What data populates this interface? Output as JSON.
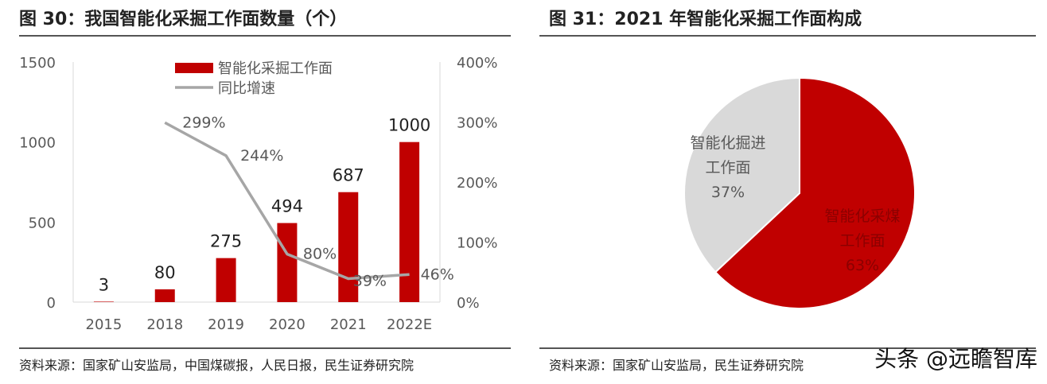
{
  "colors": {
    "bar": "#c00000",
    "line": "#a6a6a6",
    "pie_main": "#c00000",
    "pie_other": "#d9d9d9"
  },
  "left": {
    "title": "图 30：我国智能化采掘工作面数量（个）",
    "source": "资料来源：国家矿山安监局，中国煤碳报，人民日报，民生证券研究院"
  },
  "right": {
    "title": "图 31：2021 年智能化采掘工作面构成",
    "source": "资料来源：国家矿山安监局，民生证券研究院"
  },
  "watermark": "头条 @远瞻智库",
  "chart_data": [
    {
      "type": "bar",
      "categories": [
        "2015",
        "2018",
        "2019",
        "2020",
        "2021",
        "2022E"
      ],
      "series": [
        {
          "name": "智能化采掘工作面",
          "type": "bar",
          "axis": "left",
          "values": [
            3,
            80,
            275,
            494,
            687,
            1000
          ],
          "labels": [
            "3",
            "80",
            "275",
            "494",
            "687",
            "1000"
          ]
        },
        {
          "name": "同比增速",
          "type": "line",
          "axis": "right",
          "values": [
            null,
            299,
            244,
            80,
            39,
            46
          ],
          "labels": [
            "",
            "299%",
            "244%",
            "80%",
            "39%",
            "46%"
          ]
        }
      ],
      "ylim": [
        0,
        1500
      ],
      "yticks": [
        "0",
        "500",
        "1000",
        "1500"
      ],
      "y2lim": [
        0,
        400
      ],
      "y2ticks": [
        "0%",
        "100%",
        "200%",
        "300%",
        "400%"
      ],
      "legend_position": "top-center",
      "grid": false
    },
    {
      "type": "pie",
      "slices": [
        {
          "label_line1": "智能化采煤",
          "label_line2": "工作面",
          "pct_label": "63%",
          "value": 63
        },
        {
          "label_line1": "智能化掘进",
          "label_line2": "工作面",
          "pct_label": "37%",
          "value": 37
        }
      ]
    }
  ]
}
